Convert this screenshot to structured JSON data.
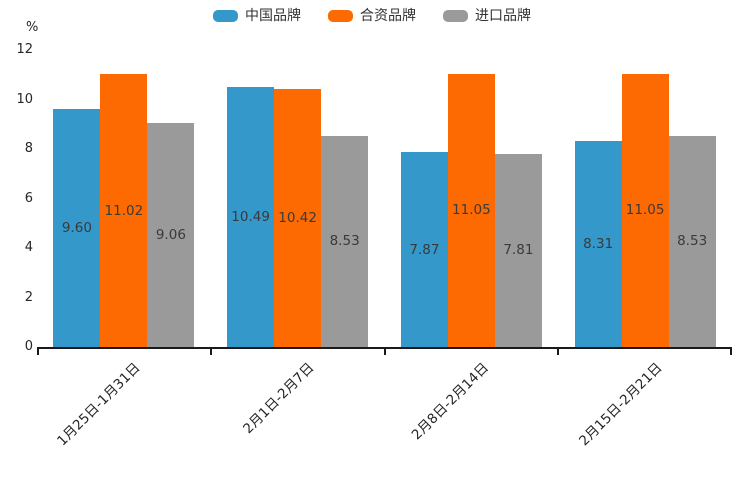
{
  "chart_data": {
    "type": "bar",
    "title": "",
    "ylabel": "%",
    "xlabel": "",
    "ylim": [
      0,
      12
    ],
    "yticks": [
      0,
      2,
      4,
      6,
      8,
      10,
      12
    ],
    "grid": false,
    "legend_position": "top-center",
    "value_label_decimals": 2,
    "categories": [
      "1月25日-1月31日",
      "2月1日-2月7日",
      "2月8日-2月14日",
      "2月15日-2月21日"
    ],
    "series": [
      {
        "name": "中国品牌",
        "color": "#3498CB",
        "values": [
          9.6,
          10.49,
          7.87,
          8.31
        ]
      },
      {
        "name": "合资品牌",
        "color": "#FC6A01",
        "values": [
          11.02,
          10.42,
          11.05,
          11.05
        ]
      },
      {
        "name": "进口品牌",
        "color": "#9A9A9A",
        "values": [
          9.06,
          8.53,
          7.81,
          8.53
        ]
      }
    ],
    "colors": {
      "axis": "#1A1A1A",
      "tick_text": "#262626",
      "value_text": "#3A3A3A"
    }
  }
}
